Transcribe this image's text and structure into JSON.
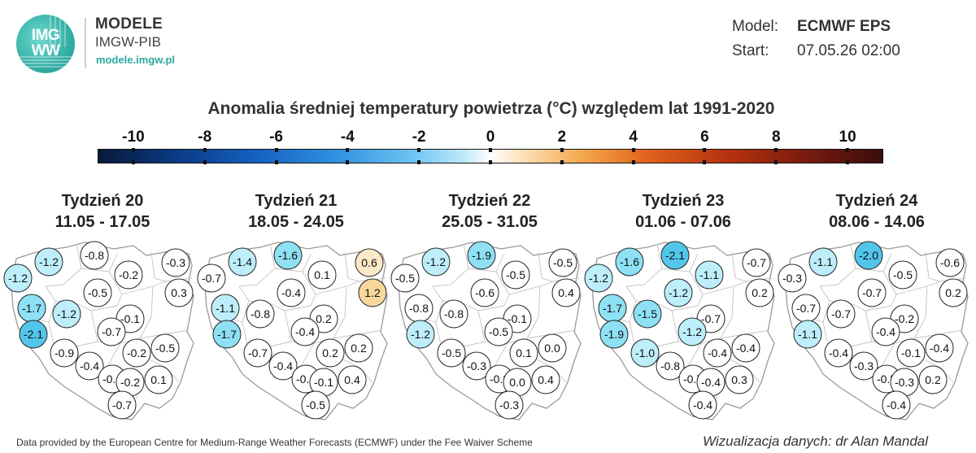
{
  "header": {
    "logo_text_line1": "IMG",
    "logo_text_line2": "WW",
    "brand_line1": "MODELE",
    "brand_line2": "IMGW-PIB",
    "brand_line3": "modele.imgw.pl",
    "model_label": "Model:",
    "model_value": "ECMWF EPS",
    "start_label": "Start:",
    "start_value": "07.05.26 02:00"
  },
  "title": "Anomalia średniej temperatury powietrza (°C) względem lat 1991-2020",
  "colorbar": {
    "ticks": [
      "-10",
      "-8",
      "-6",
      "-4",
      "-2",
      "0",
      "2",
      "4",
      "6",
      "8",
      "10"
    ],
    "range": [
      -11,
      11
    ],
    "colors": [
      "#071a3a",
      "#0b3a85",
      "#1560c0",
      "#2e8fe0",
      "#6cc3f2",
      "#c3ecfb",
      "#ffffff",
      "#fbe2b8",
      "#f3a54a",
      "#e0631c",
      "#b8320e",
      "#7a1c0e",
      "#3a0d0d"
    ]
  },
  "weeks": [
    {
      "title": "Tydzień 20",
      "dates": "11.05 - 17.05",
      "values": [
        "-1.2",
        "-0.8",
        "-0.2",
        "-0.3",
        "-1.2",
        "-0.5",
        "0.3",
        "-1.7",
        "-1.2",
        "-0.1",
        "-2.1",
        "-0.7",
        "-0.9",
        "-0.2",
        "-0.5",
        "-0.4",
        "-0.4",
        "-0.2",
        "0.1",
        "-0.7"
      ]
    },
    {
      "title": "Tydzień 21",
      "dates": "18.05 - 24.05",
      "values": [
        "-1.4",
        "-1.6",
        "0.1",
        "0.6",
        "-0.7",
        "-0.4",
        "1.2",
        "-1.1",
        "-0.8",
        "0.2",
        "-1.7",
        "-0.4",
        "-0.7",
        "0.2",
        "0.2",
        "-0.4",
        "-0.4",
        "-0.1",
        "0.4",
        "-0.5"
      ]
    },
    {
      "title": "Tydzień 22",
      "dates": "25.05 - 31.05",
      "values": [
        "-1.2",
        "-1.9",
        "-0.5",
        "-0.5",
        "-0.5",
        "-0.6",
        "0.4",
        "-0.8",
        "-0.8",
        "-0.1",
        "-1.2",
        "-0.5",
        "-0.5",
        "0.1",
        "0.0",
        "-0.3",
        "-0.3",
        "0.0",
        "0.4",
        "-0.3"
      ]
    },
    {
      "title": "Tydzień 23",
      "dates": "01.06 - 07.06",
      "values": [
        "-1.6",
        "-2.1",
        "-1.1",
        "-0.7",
        "-1.2",
        "-1.2",
        "0.2",
        "-1.7",
        "-1.5",
        "-0.7",
        "-1.9",
        "-1.2",
        "-1.0",
        "-0.4",
        "-0.4",
        "-0.8",
        "-0.7",
        "-0.4",
        "0.3",
        "-0.4"
      ]
    },
    {
      "title": "Tydzień 24",
      "dates": "08.06 - 14.06",
      "values": [
        "-1.1",
        "-2.0",
        "-0.5",
        "-0.6",
        "-0.3",
        "-0.7",
        "0.2",
        "-0.7",
        "-0.7",
        "-0.2",
        "-1.1",
        "-0.4",
        "-0.4",
        "-0.1",
        "-0.4",
        "-0.3",
        "-0.5",
        "-0.3",
        "0.2",
        "-0.4"
      ]
    }
  ],
  "footer": {
    "credits": "Data provided by the European Centre for Medium-Range Weather Forecasts (ECMWF) under the Fee Waiver Scheme",
    "author": "Wizualizacja danych: dr Alan Mandal"
  }
}
